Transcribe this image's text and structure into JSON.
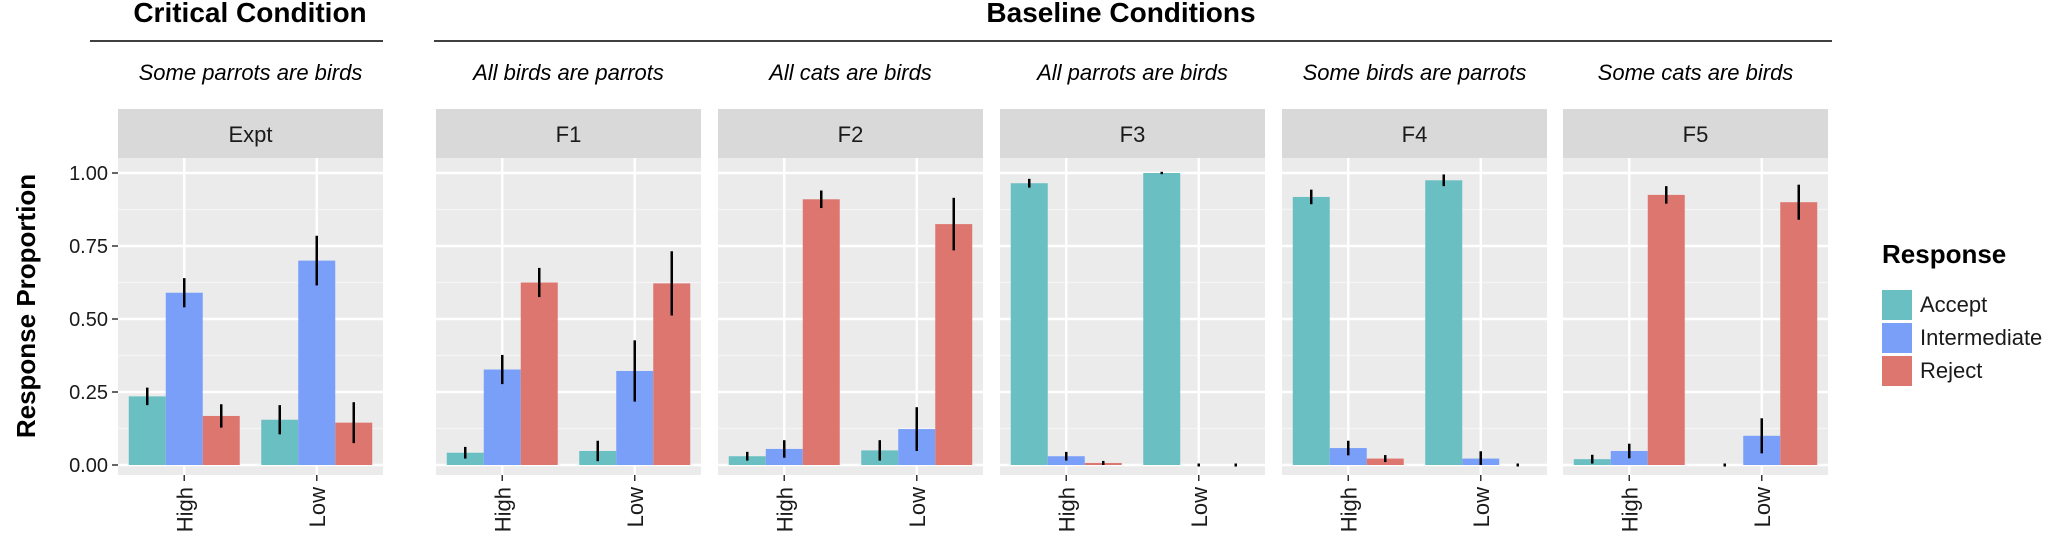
{
  "chart_data": {
    "type": "bar",
    "ylabel": "Response Proportion",
    "ylim": [
      0,
      1.0
    ],
    "yticks": [
      "0.00",
      "0.25",
      "0.50",
      "0.75",
      "1.00"
    ],
    "ytick_values": [
      0,
      0.25,
      0.5,
      0.75,
      1.0
    ],
    "categories": [
      "High",
      "Low"
    ],
    "legend": {
      "title": "Response",
      "placement": "right",
      "entries": [
        {
          "name": "Accept",
          "color": "#6abfc3"
        },
        {
          "name": "Intermediate",
          "color": "#7a9ff9"
        },
        {
          "name": "Reject",
          "color": "#de7670"
        }
      ]
    },
    "groups": [
      {
        "title": "Critical Condition",
        "panels": [
          0
        ]
      },
      {
        "title": "Baseline Conditions",
        "panels": [
          1,
          2,
          3,
          4,
          5
        ]
      }
    ],
    "panels": [
      {
        "strip": "Expt",
        "subtitle": "Some parrots are birds",
        "series": [
          {
            "name": "Accept",
            "values": [
              0.235,
              0.155
            ],
            "err": [
              0.03,
              0.05
            ]
          },
          {
            "name": "Intermediate",
            "values": [
              0.59,
              0.7
            ],
            "err": [
              0.05,
              0.085
            ]
          },
          {
            "name": "Reject",
            "values": [
              0.168,
              0.145
            ],
            "err": [
              0.04,
              0.07
            ]
          }
        ]
      },
      {
        "strip": "F1",
        "subtitle": "All birds are parrots",
        "series": [
          {
            "name": "Accept",
            "values": [
              0.042,
              0.048
            ],
            "err": [
              0.02,
              0.035
            ]
          },
          {
            "name": "Intermediate",
            "values": [
              0.327,
              0.322
            ],
            "err": [
              0.05,
              0.105
            ]
          },
          {
            "name": "Reject",
            "values": [
              0.625,
              0.622
            ],
            "err": [
              0.05,
              0.11
            ]
          }
        ]
      },
      {
        "strip": "F2",
        "subtitle": "All cats are birds",
        "series": [
          {
            "name": "Accept",
            "values": [
              0.03,
              0.05
            ],
            "err": [
              0.015,
              0.035
            ]
          },
          {
            "name": "Intermediate",
            "values": [
              0.055,
              0.123
            ],
            "err": [
              0.03,
              0.075
            ]
          },
          {
            "name": "Reject",
            "values": [
              0.91,
              0.825
            ],
            "err": [
              0.03,
              0.09
            ]
          }
        ]
      },
      {
        "strip": "F3",
        "subtitle": "All parrots are birds",
        "series": [
          {
            "name": "Accept",
            "values": [
              0.965,
              1.0
            ],
            "err": [
              0.015,
              0.004
            ]
          },
          {
            "name": "Intermediate",
            "values": [
              0.03,
              0.0
            ],
            "err": [
              0.015,
              0.0
            ]
          },
          {
            "name": "Reject",
            "values": [
              0.007,
              0.0
            ],
            "err": [
              0.007,
              0.0
            ]
          }
        ]
      },
      {
        "strip": "F4",
        "subtitle": "Some birds are parrots",
        "series": [
          {
            "name": "Accept",
            "values": [
              0.918,
              0.975
            ],
            "err": [
              0.025,
              0.02
            ]
          },
          {
            "name": "Intermediate",
            "values": [
              0.058,
              0.022
            ],
            "err": [
              0.025,
              0.025
            ]
          },
          {
            "name": "Reject",
            "values": [
              0.022,
              0.0
            ],
            "err": [
              0.012,
              0.0
            ]
          }
        ]
      },
      {
        "strip": "F5",
        "subtitle": "Some cats are birds",
        "series": [
          {
            "name": "Accept",
            "values": [
              0.02,
              0.0
            ],
            "err": [
              0.015,
              0.0
            ]
          },
          {
            "name": "Intermediate",
            "values": [
              0.048,
              0.1
            ],
            "err": [
              0.025,
              0.06
            ]
          },
          {
            "name": "Reject",
            "values": [
              0.925,
              0.9
            ],
            "err": [
              0.03,
              0.06
            ]
          }
        ]
      }
    ]
  }
}
